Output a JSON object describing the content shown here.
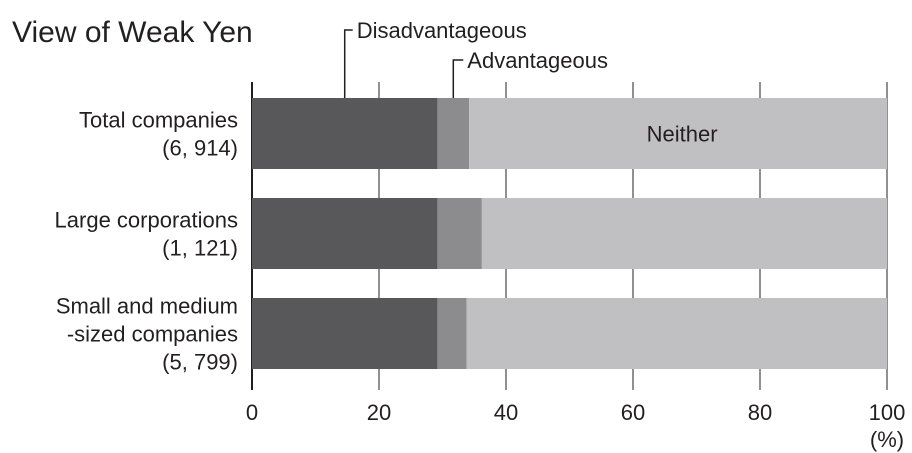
{
  "chart_data": {
    "type": "bar",
    "orientation": "horizontal",
    "stacked": true,
    "title": "View of Weak Yen",
    "categories": [
      {
        "lines": [
          "Total companies",
          "(6, 914)"
        ]
      },
      {
        "lines": [
          "Large corporations",
          "(1, 121)"
        ]
      },
      {
        "lines": [
          "Small and medium",
          "-sized companies",
          "(5, 799)"
        ]
      }
    ],
    "series": [
      {
        "name": "Disadvantageous",
        "values": [
          29.2,
          29.2,
          29.2
        ],
        "color": "#58585a"
      },
      {
        "name": "Advantageous",
        "values": [
          5.0,
          7.0,
          4.6
        ],
        "color": "#8c8c8e"
      },
      {
        "name": "Neither",
        "values": [
          65.8,
          63.8,
          66.2
        ],
        "color": "#c0c0c2"
      }
    ],
    "xlim": [
      0,
      100
    ],
    "xticks": [
      "0",
      "20",
      "40",
      "60",
      "80",
      "100"
    ],
    "unit": "(%)",
    "grid": true,
    "legend": "callouts above top bar; \"Neither\" labeled inside top bar"
  }
}
